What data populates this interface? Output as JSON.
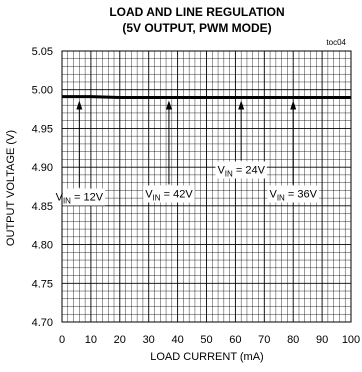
{
  "chart_data": {
    "type": "line",
    "title": "LOAD AND LINE REGULATION",
    "subtitle": "(5V OUTPUT, PWM MODE)",
    "figure_id": "toc04",
    "xlabel": "LOAD CURRENT (mA)",
    "ylabel": "OUTPUT VOLTAGE (V)",
    "xlim": [
      0,
      100
    ],
    "ylim": [
      4.7,
      5.05
    ],
    "x_ticks": [
      "0",
      "10",
      "20",
      "30",
      "40",
      "50",
      "60",
      "70",
      "80",
      "90",
      "100"
    ],
    "y_ticks": [
      "4.70",
      "4.75",
      "4.80",
      "4.85",
      "4.90",
      "4.95",
      "5.00",
      "5.05"
    ],
    "grid": true,
    "series": [
      {
        "x": [
          0,
          10,
          20,
          30,
          40,
          50,
          60,
          70,
          80,
          90,
          100
        ],
        "values": [
          4.991,
          4.991,
          4.99,
          4.99,
          4.99,
          4.99,
          4.99,
          4.99,
          4.99,
          4.99,
          4.99
        ]
      }
    ],
    "annotations": [
      {
        "prefix": "V",
        "subscript": "IN",
        "suffix": " = 12V",
        "x": 6,
        "y": 4.99,
        "label_y": 4.862
      },
      {
        "prefix": "V",
        "subscript": "IN",
        "suffix": " = 42V",
        "x": 37,
        "y": 4.99,
        "label_y": 4.866
      },
      {
        "prefix": "V",
        "subscript": "IN",
        "suffix": " = 24V",
        "x": 62,
        "y": 4.99,
        "label_y": 4.897
      },
      {
        "prefix": "V",
        "subscript": "IN",
        "suffix": " = 36V",
        "x": 80,
        "y": 4.99,
        "label_y": 4.866
      }
    ]
  }
}
